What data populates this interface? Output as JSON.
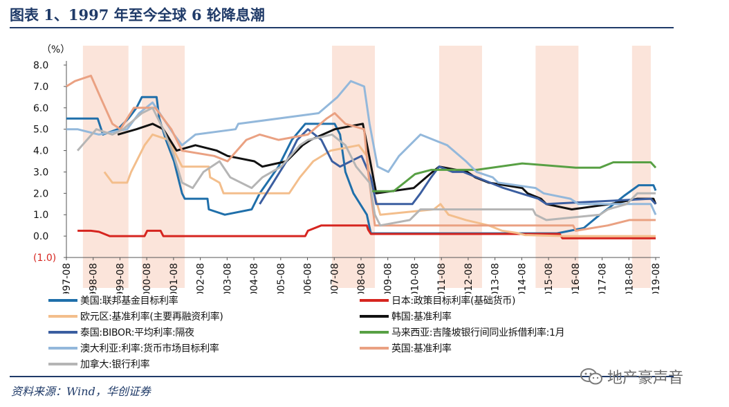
{
  "title": "图表 1、1997 年至今全球 6 轮降息潮",
  "source": "资料来源：Wind，华创证券",
  "watermark_text": "地产豪声音",
  "chart_data": {
    "type": "line",
    "title": "图表 1、1997 年至今全球 6 轮降息潮",
    "ylabel": "（%）",
    "ylim": [
      -1.0,
      8.0
    ],
    "yticks": [
      -1.0,
      0.0,
      1.0,
      2.0,
      3.0,
      4.0,
      5.0,
      6.0,
      7.0,
      8.0
    ],
    "ytick_labels": [
      "(1.0)",
      "0.0",
      "1.0",
      "2.0",
      "3.0",
      "4.0",
      "5.0",
      "6.0",
      "7.0",
      "8.0"
    ],
    "xlim": [
      1997.583,
      2019.583
    ],
    "xtick_labels": [
      "1997-08",
      "1998-08",
      "1999-08",
      "2000-08",
      "2001-08",
      "2002-08",
      "2003-08",
      "2004-08",
      "2005-08",
      "2006-08",
      "2007-08",
      "2008-08",
      "2009-08",
      "2010-08",
      "2011-08",
      "2012-08",
      "2013-08",
      "2014-08",
      "2015-08",
      "2016-08",
      "2017-08",
      "2018-08",
      "2019-08"
    ],
    "grid": false,
    "legend_position": "bottom",
    "shaded_periods": [
      [
        1998.2,
        1999.9
      ],
      [
        2000.4,
        2002.0
      ],
      [
        2007.5,
        2009.1
      ],
      [
        2011.5,
        2013.1
      ],
      [
        2015.1,
        2016.7
      ],
      [
        2018.7,
        2019.4
      ]
    ],
    "shade_color": "#fbe4da",
    "series": [
      {
        "name": "美国:联邦基金目标利率",
        "color": "#1f6faa",
        "points": [
          [
            1997.58,
            5.5
          ],
          [
            1998.75,
            5.5
          ],
          [
            1998.95,
            4.75
          ],
          [
            1999.5,
            5.0
          ],
          [
            1999.9,
            5.5
          ],
          [
            2000.2,
            6.0
          ],
          [
            2000.4,
            6.5
          ],
          [
            2000.95,
            6.5
          ],
          [
            2001.05,
            5.5
          ],
          [
            2001.3,
            4.5
          ],
          [
            2001.6,
            3.5
          ],
          [
            2001.9,
            2.0
          ],
          [
            2002.0,
            1.75
          ],
          [
            2002.85,
            1.75
          ],
          [
            2002.9,
            1.25
          ],
          [
            2003.5,
            1.0
          ],
          [
            2004.5,
            1.25
          ],
          [
            2004.8,
            2.0
          ],
          [
            2005.5,
            3.25
          ],
          [
            2006.0,
            4.5
          ],
          [
            2006.5,
            5.25
          ],
          [
            2007.6,
            5.25
          ],
          [
            2007.8,
            4.75
          ],
          [
            2008.0,
            3.0
          ],
          [
            2008.3,
            2.0
          ],
          [
            2008.8,
            1.0
          ],
          [
            2008.95,
            0.13
          ],
          [
            2015.9,
            0.13
          ],
          [
            2016.9,
            0.38
          ],
          [
            2017.5,
            1.0
          ],
          [
            2017.9,
            1.38
          ],
          [
            2018.4,
            1.88
          ],
          [
            2018.95,
            2.38
          ],
          [
            2019.5,
            2.38
          ],
          [
            2019.583,
            2.13
          ]
        ]
      },
      {
        "name": "日本:政策目标利率(基础货币)",
        "color": "#d6251f",
        "points": [
          [
            1998.0,
            0.25
          ],
          [
            1998.5,
            0.25
          ],
          [
            1998.8,
            0.2
          ],
          [
            1999.2,
            0.0
          ],
          [
            2000.5,
            0.0
          ],
          [
            2000.6,
            0.25
          ],
          [
            2001.1,
            0.25
          ],
          [
            2001.2,
            0.0
          ],
          [
            2006.5,
            0.0
          ],
          [
            2006.6,
            0.25
          ],
          [
            2007.1,
            0.5
          ],
          [
            2008.8,
            0.5
          ],
          [
            2008.85,
            0.3
          ],
          [
            2008.95,
            0.1
          ],
          [
            2016.0,
            0.1
          ],
          [
            2016.1,
            -0.1
          ],
          [
            2019.583,
            -0.1
          ]
        ]
      },
      {
        "name": "欧元区:基准利率(主要再融资利率)",
        "color": "#f3be8c",
        "points": [
          [
            1999.0,
            3.0
          ],
          [
            1999.3,
            2.5
          ],
          [
            1999.85,
            2.5
          ],
          [
            2000.0,
            3.0
          ],
          [
            2000.5,
            4.25
          ],
          [
            2000.8,
            4.75
          ],
          [
            2001.4,
            4.5
          ],
          [
            2001.7,
            3.75
          ],
          [
            2001.9,
            3.25
          ],
          [
            2002.9,
            3.25
          ],
          [
            2002.95,
            2.75
          ],
          [
            2003.3,
            2.5
          ],
          [
            2003.45,
            2.0
          ],
          [
            2005.9,
            2.0
          ],
          [
            2006.3,
            2.75
          ],
          [
            2006.8,
            3.5
          ],
          [
            2007.45,
            4.0
          ],
          [
            2008.5,
            4.25
          ],
          [
            2008.8,
            3.75
          ],
          [
            2008.95,
            2.5
          ],
          [
            2009.3,
            1.0
          ],
          [
            2011.3,
            1.25
          ],
          [
            2011.55,
            1.5
          ],
          [
            2011.85,
            1.0
          ],
          [
            2012.5,
            0.75
          ],
          [
            2013.35,
            0.5
          ],
          [
            2013.85,
            0.25
          ],
          [
            2014.4,
            0.15
          ],
          [
            2014.7,
            0.05
          ],
          [
            2016.2,
            0.0
          ],
          [
            2019.583,
            0.0
          ]
        ]
      },
      {
        "name": "韩国:基准利率",
        "color": "#111111",
        "points": [
          [
            1999.5,
            4.75
          ],
          [
            2000.2,
            5.0
          ],
          [
            2000.8,
            5.25
          ],
          [
            2001.2,
            5.0
          ],
          [
            2001.7,
            4.0
          ],
          [
            2002.4,
            4.25
          ],
          [
            2003.2,
            4.0
          ],
          [
            2003.6,
            3.75
          ],
          [
            2004.6,
            3.5
          ],
          [
            2004.9,
            3.25
          ],
          [
            2005.8,
            3.5
          ],
          [
            2006.4,
            4.25
          ],
          [
            2006.7,
            4.5
          ],
          [
            2007.6,
            5.0
          ],
          [
            2008.65,
            5.25
          ],
          [
            2008.85,
            4.0
          ],
          [
            2009.15,
            2.0
          ],
          [
            2010.55,
            2.25
          ],
          [
            2011.25,
            3.0
          ],
          [
            2011.5,
            3.25
          ],
          [
            2012.55,
            3.0
          ],
          [
            2012.85,
            2.75
          ],
          [
            2013.35,
            2.5
          ],
          [
            2014.6,
            2.25
          ],
          [
            2014.8,
            2.0
          ],
          [
            2015.3,
            1.75
          ],
          [
            2015.5,
            1.5
          ],
          [
            2016.45,
            1.25
          ],
          [
            2017.9,
            1.5
          ],
          [
            2018.9,
            1.75
          ],
          [
            2019.5,
            1.75
          ],
          [
            2019.583,
            1.5
          ]
        ]
      },
      {
        "name": "泰国:BIBOR:平均利率:隔夜",
        "color": "#3b5ea0",
        "points": [
          [
            2004.8,
            1.5
          ],
          [
            2005.3,
            2.5
          ],
          [
            2005.8,
            3.5
          ],
          [
            2006.2,
            4.5
          ],
          [
            2006.6,
            5.0
          ],
          [
            2007.1,
            4.5
          ],
          [
            2007.5,
            3.5
          ],
          [
            2007.8,
            3.25
          ],
          [
            2008.6,
            3.75
          ],
          [
            2008.95,
            2.75
          ],
          [
            2009.15,
            1.5
          ],
          [
            2010.5,
            1.5
          ],
          [
            2010.8,
            2.0
          ],
          [
            2011.2,
            2.75
          ],
          [
            2011.5,
            3.25
          ],
          [
            2012.0,
            3.0
          ],
          [
            2012.4,
            3.0
          ],
          [
            2013.4,
            2.5
          ],
          [
            2013.9,
            2.25
          ],
          [
            2015.2,
            1.75
          ],
          [
            2015.5,
            1.5
          ],
          [
            2019.4,
            1.75
          ],
          [
            2019.583,
            1.5
          ]
        ]
      },
      {
        "name": "马来西亚:吉隆坡银行间同业拆借利率:1月",
        "color": "#58a044",
        "points": [
          [
            2009.0,
            2.1
          ],
          [
            2009.8,
            2.1
          ],
          [
            2010.2,
            2.5
          ],
          [
            2010.6,
            2.9
          ],
          [
            2011.2,
            3.1
          ],
          [
            2012.9,
            3.1
          ],
          [
            2014.6,
            3.4
          ],
          [
            2016.6,
            3.2
          ],
          [
            2017.5,
            3.2
          ],
          [
            2018.0,
            3.45
          ],
          [
            2019.4,
            3.45
          ],
          [
            2019.583,
            3.2
          ]
        ]
      },
      {
        "name": "澳大利亚:利率:货币市场目标利率",
        "color": "#93b8db",
        "points": [
          [
            1997.58,
            5.0
          ],
          [
            1998.0,
            5.0
          ],
          [
            1998.8,
            4.75
          ],
          [
            1999.85,
            5.0
          ],
          [
            2000.3,
            5.75
          ],
          [
            2000.8,
            6.25
          ],
          [
            2001.2,
            5.5
          ],
          [
            2001.6,
            4.75
          ],
          [
            2001.9,
            4.25
          ],
          [
            2002.4,
            4.75
          ],
          [
            2003.9,
            5.0
          ],
          [
            2004.0,
            5.25
          ],
          [
            2007.0,
            5.75
          ],
          [
            2007.7,
            6.5
          ],
          [
            2008.2,
            7.25
          ],
          [
            2008.7,
            7.0
          ],
          [
            2008.9,
            5.25
          ],
          [
            2009.2,
            3.25
          ],
          [
            2009.6,
            3.0
          ],
          [
            2010.0,
            3.75
          ],
          [
            2010.8,
            4.75
          ],
          [
            2011.8,
            4.25
          ],
          [
            2012.5,
            3.5
          ],
          [
            2012.9,
            3.0
          ],
          [
            2013.5,
            2.75
          ],
          [
            2013.7,
            2.5
          ],
          [
            2015.1,
            2.25
          ],
          [
            2015.4,
            2.0
          ],
          [
            2016.4,
            1.75
          ],
          [
            2016.7,
            1.5
          ],
          [
            2019.4,
            1.5
          ],
          [
            2019.583,
            1.0
          ]
        ]
      },
      {
        "name": "英国:基准利率",
        "color": "#eaa182",
        "points": [
          [
            1997.58,
            7.0
          ],
          [
            1997.9,
            7.25
          ],
          [
            1998.5,
            7.5
          ],
          [
            1998.85,
            6.5
          ],
          [
            1999.3,
            5.25
          ],
          [
            1999.6,
            5.0
          ],
          [
            2000.1,
            6.0
          ],
          [
            2000.9,
            6.0
          ],
          [
            2001.5,
            5.0
          ],
          [
            2001.9,
            4.0
          ],
          [
            2003.1,
            3.75
          ],
          [
            2003.6,
            3.5
          ],
          [
            2004.3,
            4.5
          ],
          [
            2004.8,
            4.75
          ],
          [
            2005.5,
            4.5
          ],
          [
            2006.6,
            4.75
          ],
          [
            2007.3,
            5.5
          ],
          [
            2007.6,
            5.75
          ],
          [
            2008.0,
            5.25
          ],
          [
            2008.7,
            5.0
          ],
          [
            2008.85,
            3.0
          ],
          [
            2009.1,
            0.5
          ],
          [
            2016.5,
            0.5
          ],
          [
            2016.6,
            0.25
          ],
          [
            2017.8,
            0.5
          ],
          [
            2018.6,
            0.75
          ],
          [
            2019.583,
            0.75
          ]
        ]
      },
      {
        "name": "加拿大:银行利率",
        "color": "#b5b5b5",
        "points": [
          [
            1998.0,
            4.0
          ],
          [
            1998.7,
            5.0
          ],
          [
            1999.3,
            4.75
          ],
          [
            1999.7,
            5.0
          ],
          [
            2000.4,
            5.75
          ],
          [
            2000.8,
            6.0
          ],
          [
            2001.2,
            5.0
          ],
          [
            2001.6,
            3.75
          ],
          [
            2001.9,
            2.5
          ],
          [
            2002.3,
            2.25
          ],
          [
            2002.7,
            3.0
          ],
          [
            2003.3,
            3.5
          ],
          [
            2003.7,
            2.75
          ],
          [
            2004.5,
            2.25
          ],
          [
            2004.9,
            2.75
          ],
          [
            2005.6,
            3.25
          ],
          [
            2006.3,
            4.25
          ],
          [
            2006.6,
            4.5
          ],
          [
            2007.5,
            4.75
          ],
          [
            2008.0,
            4.25
          ],
          [
            2008.4,
            3.25
          ],
          [
            2008.9,
            2.5
          ],
          [
            2009.1,
            1.0
          ],
          [
            2009.3,
            0.5
          ],
          [
            2010.4,
            0.75
          ],
          [
            2010.8,
            1.25
          ],
          [
            2015.0,
            1.25
          ],
          [
            2015.1,
            1.0
          ],
          [
            2015.5,
            0.75
          ],
          [
            2017.5,
            1.0
          ],
          [
            2017.8,
            1.25
          ],
          [
            2018.5,
            1.5
          ],
          [
            2018.9,
            2.0
          ],
          [
            2019.583,
            2.0
          ]
        ]
      }
    ]
  }
}
